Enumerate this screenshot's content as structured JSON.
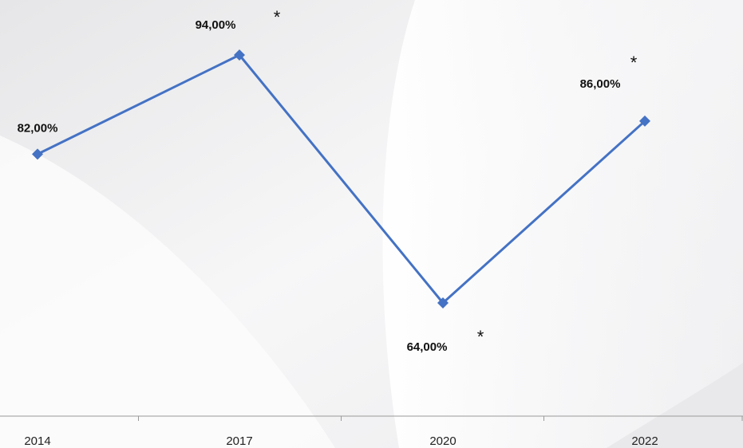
{
  "chart_data": {
    "type": "line",
    "categories": [
      "2014",
      "2017",
      "2020",
      "2022"
    ],
    "series": [
      {
        "values": [
          82.0,
          94.0,
          64.0,
          86.0
        ],
        "color": "#4472c4",
        "labels": [
          "82,00%",
          "94,00%",
          "64,00%",
          "86,00%"
        ],
        "asterisk": [
          false,
          true,
          true,
          true
        ]
      }
    ],
    "asterisk_symbol": "*",
    "title": "",
    "xlabel": "",
    "ylabel": "",
    "ylim": [
      50,
      100
    ],
    "grid": false,
    "legend": "none"
  }
}
